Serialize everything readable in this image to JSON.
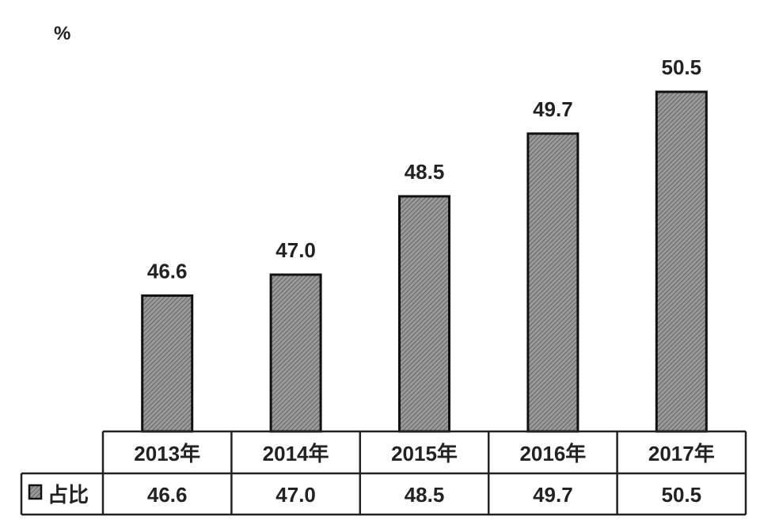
{
  "chart_data": {
    "type": "bar",
    "title": "",
    "ylabel": "%",
    "xlabel": "",
    "categories": [
      "2013年",
      "2014年",
      "2015年",
      "2016年",
      "2017年"
    ],
    "series": [
      {
        "name": "占比",
        "values": [
          46.6,
          47.0,
          48.5,
          49.7,
          50.5
        ]
      }
    ],
    "data_labels": [
      "46.6",
      "47.0",
      "48.5",
      "49.7",
      "50.5"
    ],
    "ylim": [
      44,
      52
    ],
    "grid": false,
    "legend": "data-table-left",
    "data_table": true,
    "colors": {
      "bar_fill": "#8a8a8a",
      "bar_stroke": "#111111",
      "text": "#222222"
    }
  }
}
